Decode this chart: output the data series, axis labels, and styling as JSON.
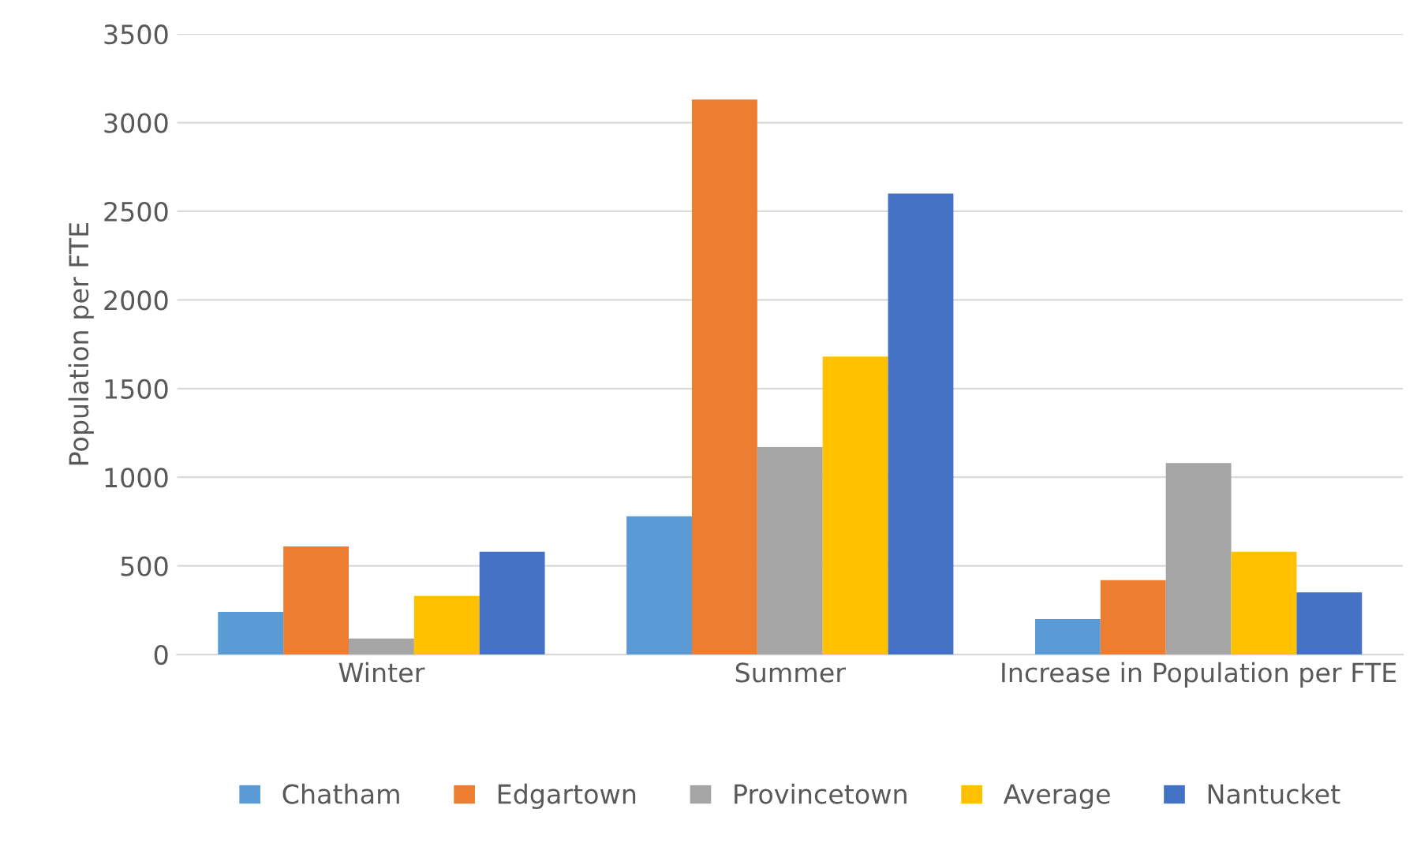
{
  "chart_data": {
    "type": "bar",
    "ylabel": "Population per FTE",
    "categories": [
      "Winter",
      "Summer",
      "Increase in Population per FTE"
    ],
    "series": [
      {
        "name": "Chatham",
        "color": "#5b9bd5",
        "values": [
          240,
          780,
          200
        ]
      },
      {
        "name": "Edgartown",
        "color": "#ed7d31",
        "values": [
          610,
          3130,
          420
        ]
      },
      {
        "name": "Provincetown",
        "color": "#a5a5a5",
        "values": [
          90,
          1170,
          1080
        ]
      },
      {
        "name": "Average",
        "color": "#ffc000",
        "values": [
          330,
          1680,
          580
        ]
      },
      {
        "name": "Nantucket",
        "color": "#4472c4",
        "values": [
          580,
          2600,
          350
        ]
      }
    ],
    "ylim": [
      0,
      3500
    ],
    "yticks": [
      0,
      500,
      1000,
      1500,
      2000,
      2500,
      3000,
      3500
    ],
    "grid": "y",
    "legend": "bottom"
  }
}
